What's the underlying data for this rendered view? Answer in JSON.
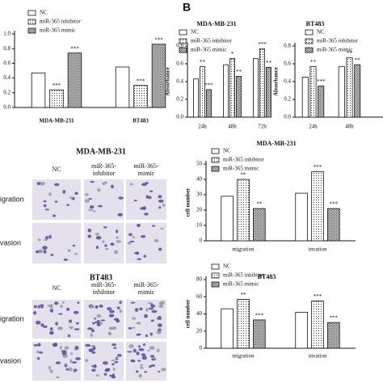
{
  "panel_label": "B",
  "chart_data": [
    {
      "type": "bar",
      "categories": [
        "MDA-MB-231",
        "BT483"
      ],
      "series": [
        {
          "name": "NC",
          "values": [
            0.47,
            0.55
          ],
          "significance": [
            null,
            null
          ]
        },
        {
          "name": "miR-365 inhibitor",
          "values": [
            0.24,
            0.3
          ],
          "significance": [
            "***",
            "***"
          ]
        },
        {
          "name": "miR-365 mimic",
          "values": [
            0.74,
            0.86
          ],
          "significance": [
            "***",
            "***"
          ]
        }
      ],
      "ylim": [
        0,
        1.0
      ],
      "yticks": [
        {
          "value": 0,
          "label": "0.0"
        },
        0.2,
        0.4,
        0.6,
        0.8,
        {
          "value": 1.0,
          "label": "1.0"
        }
      ]
    },
    {
      "type": "bar",
      "title": "MDA-MB-231",
      "ylabel": "Absorbance",
      "categories": [
        "24h",
        "48h",
        "72h"
      ],
      "series": [
        {
          "name": "NC",
          "values": [
            0.43,
            0.59,
            0.66
          ],
          "significance": [
            null,
            null,
            null
          ]
        },
        {
          "name": "miR-365 inhibitor",
          "values": [
            0.57,
            0.66,
            0.77
          ],
          "significance": [
            "**",
            "*",
            "***"
          ]
        },
        {
          "name": "miR-365 mimic",
          "values": [
            0.31,
            0.46,
            0.56
          ],
          "significance": [
            "***",
            "**",
            "**"
          ]
        }
      ],
      "ylim": [
        0,
        0.8
      ],
      "yticks": [
        {
          "value": 0,
          "label": "0.0"
        },
        0.2,
        0.4,
        0.6,
        0.8
      ]
    },
    {
      "type": "bar",
      "title": "BT483",
      "ylabel": "Absorbance",
      "categories": [
        "24h",
        "48h"
      ],
      "series": [
        {
          "name": "NC",
          "values": [
            0.45,
            0.57
          ],
          "significance": [
            null,
            null
          ]
        },
        {
          "name": "miR-365 inhibitor",
          "values": [
            0.57,
            0.67
          ],
          "significance": [
            "**",
            "**"
          ]
        },
        {
          "name": "miR-365 mimic",
          "values": [
            0.35,
            0.59
          ],
          "significance": [
            "***",
            "**"
          ]
        }
      ],
      "ylim": [
        0,
        0.8
      ],
      "yticks": [
        {
          "value": 0,
          "label": "0.0"
        },
        0.2,
        0.4,
        0.6,
        0.8
      ]
    },
    {
      "type": "bar",
      "title": "MDA-MB-231",
      "ylabel": "cell number",
      "categories": [
        "migration",
        "invation"
      ],
      "series": [
        {
          "name": "NC",
          "values": [
            29,
            31
          ],
          "significance": [
            null,
            null
          ]
        },
        {
          "name": "miR-365 inhibitor",
          "values": [
            40,
            45
          ],
          "significance": [
            "**",
            "***"
          ]
        },
        {
          "name": "miR-365 mimic",
          "values": [
            21,
            21
          ],
          "significance": [
            "**",
            "***"
          ]
        }
      ],
      "ylim": [
        0,
        50
      ],
      "yticks": [
        0,
        10,
        20,
        30,
        40,
        50
      ]
    },
    {
      "type": "bar",
      "title": "BT483",
      "ylabel": "cell number",
      "categories": [
        "migration",
        "invation"
      ],
      "series": [
        {
          "name": "NC",
          "values": [
            46,
            42
          ],
          "significance": [
            null,
            null
          ]
        },
        {
          "name": "miR-365 inhibitor",
          "values": [
            57,
            55
          ],
          "significance": [
            "**",
            "***"
          ]
        },
        {
          "name": "miR-365 mimic",
          "values": [
            33,
            30
          ],
          "significance": [
            "***",
            "***"
          ]
        }
      ],
      "ylim": [
        0,
        80
      ],
      "yticks": [
        0,
        20,
        40,
        60,
        80
      ]
    }
  ],
  "image_panels": [
    {
      "title": "MDA-MB-231",
      "columns": [
        "NC",
        "miR-365-\ninhibitor",
        "miR-365-\nmimic"
      ],
      "rows": [
        "igration",
        "vasion"
      ]
    },
    {
      "title": "BT483",
      "columns": [
        "NC",
        "miR-365-\ninhibitor",
        "miR-365-\nmimic"
      ],
      "rows": [
        "igration",
        "vasion"
      ]
    }
  ]
}
